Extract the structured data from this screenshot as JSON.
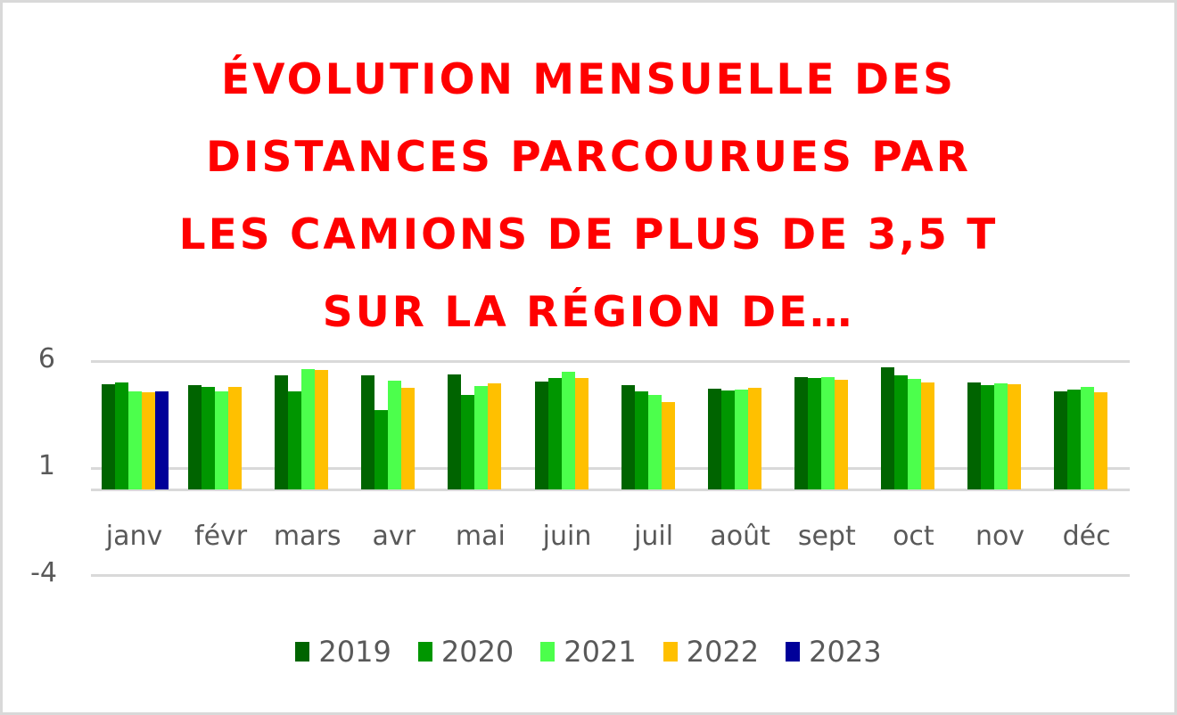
{
  "chart_data": {
    "type": "bar",
    "title": "ÉVOLUTION MENSUELLE DES DISTANCES PARCOURUES PAR LES CAMIONS DE PLUS DE 3,5 T SUR LA RÉGION DE…",
    "title_lines": [
      "ÉVOLUTION MENSUELLE DES",
      "DISTANCES PARCOURUES PAR",
      "LES CAMIONS DE PLUS DE 3,5 T",
      "SUR LA RÉGION DE…"
    ],
    "xlabel": "",
    "ylabel": "",
    "ylim": [
      -4,
      6
    ],
    "yticks": [
      6,
      1,
      -4
    ],
    "grid": true,
    "legend_position": "bottom",
    "categories": [
      "janv",
      "févr",
      "mars",
      "avr",
      "mai",
      "juin",
      "juil",
      "août",
      "sept",
      "oct",
      "nov",
      "déc"
    ],
    "series": [
      {
        "name": "2019",
        "color": "#006400",
        "values": [
          4.92,
          4.88,
          5.33,
          5.33,
          5.38,
          5.04,
          4.88,
          4.71,
          5.25,
          5.71,
          5.0,
          4.58
        ]
      },
      {
        "name": "2020",
        "color": "#009600",
        "values": [
          5.0,
          4.79,
          4.58,
          3.71,
          4.42,
          5.21,
          4.58,
          4.63,
          5.21,
          5.33,
          4.88,
          4.67
        ]
      },
      {
        "name": "2021",
        "color": "#4cff4c",
        "values": [
          4.6,
          4.58,
          5.63,
          5.08,
          4.83,
          5.5,
          4.42,
          4.67,
          5.25,
          5.17,
          4.96,
          4.79
        ]
      },
      {
        "name": "2022",
        "color": "#ffc000",
        "values": [
          4.55,
          4.79,
          5.58,
          4.75,
          4.96,
          5.21,
          4.08,
          4.75,
          5.13,
          5.0,
          4.92,
          4.54
        ]
      },
      {
        "name": "2023",
        "color": "#000099",
        "values": [
          4.6,
          null,
          null,
          null,
          null,
          null,
          null,
          null,
          null,
          null,
          null,
          null
        ]
      }
    ]
  },
  "colors": {
    "title": "#ff0000",
    "grid": "#d9d9d9",
    "tick_text": "#595959",
    "border": "#d9d9d9"
  }
}
